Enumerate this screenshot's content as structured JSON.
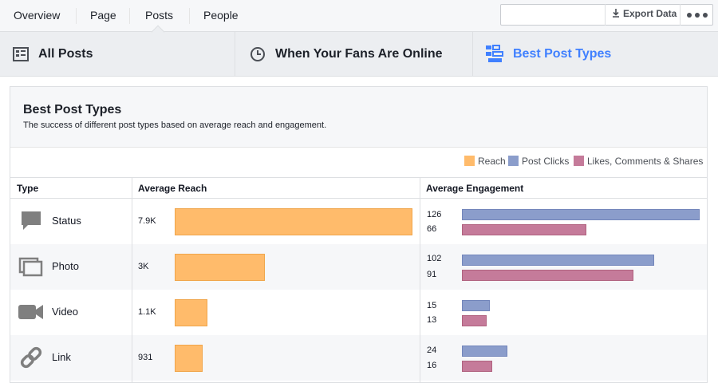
{
  "topnav": {
    "tabs": [
      "Overview",
      "Page",
      "Posts",
      "People"
    ],
    "active_tab": "Posts",
    "export_label": "Export Data"
  },
  "subtabs": [
    {
      "label": "All Posts",
      "icon": "list-icon"
    },
    {
      "label": "When Your Fans Are Online",
      "icon": "clock-icon"
    },
    {
      "label": "Best Post Types",
      "icon": "post-types-icon",
      "active": true
    }
  ],
  "panel": {
    "title": "Best Post Types",
    "subtitle": "The success of different post types based on average reach and engagement."
  },
  "legend": [
    {
      "label": "Reach",
      "color": "#ffbb6b"
    },
    {
      "label": "Post Clicks",
      "color": "#8b9dcb"
    },
    {
      "label": "Likes, Comments & Shares",
      "color": "#c57b9a"
    }
  ],
  "table": {
    "headers": [
      "Type",
      "Average Reach",
      "Average Engagement"
    ],
    "rows": [
      {
        "type": "Status",
        "icon": "status-icon",
        "reach_label": "7.9K",
        "reach": 7900,
        "clicks": 126,
        "likes": 66
      },
      {
        "type": "Photo",
        "icon": "photo-icon",
        "reach_label": "3K",
        "reach": 3000,
        "clicks": 102,
        "likes": 91
      },
      {
        "type": "Video",
        "icon": "video-icon",
        "reach_label": "1.1K",
        "reach": 1100,
        "clicks": 15,
        "likes": 13
      },
      {
        "type": "Link",
        "icon": "link-icon",
        "reach_label": "931",
        "reach": 931,
        "clicks": 24,
        "likes": 16
      }
    ]
  }
}
